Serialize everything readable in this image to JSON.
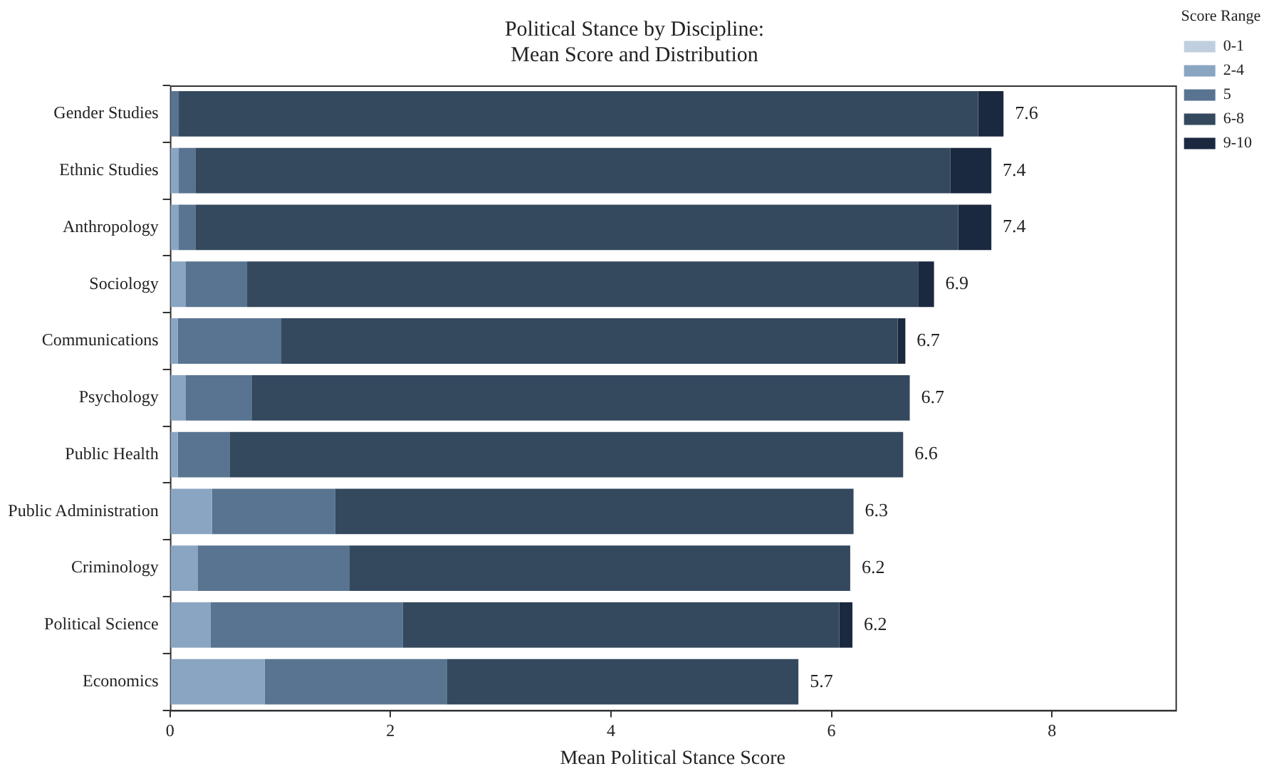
{
  "chart_data": {
    "type": "bar",
    "orientation": "horizontal",
    "stacked": true,
    "title": "Political Stance by Discipline:\nMean Score and Distribution",
    "xlabel": "Mean Political Stance Score",
    "legend_title": "Score Range",
    "legend": "top right",
    "grid": false,
    "categories": [
      "Gender Studies",
      "Ethnic Studies",
      "Anthropology",
      "Sociology",
      "Communications",
      "Psychology",
      "Public Health",
      "Public Administration",
      "Criminology",
      "Political Science",
      "Economics"
    ],
    "xlim": [
      0,
      9.12
    ],
    "xticks": [
      0,
      2,
      4,
      6,
      8
    ],
    "series": [
      {
        "name": "0-1",
        "color": "#c0cfe0",
        "values": [
          null,
          null,
          null,
          null,
          null,
          null,
          null,
          null,
          null,
          null,
          null
        ]
      },
      {
        "name": "2-4",
        "color": "#8aa5c2",
        "values": [
          null,
          0.08,
          0.08,
          0.14,
          0.07,
          0.14,
          0.07,
          0.38,
          0.25,
          0.37,
          0.86
        ]
      },
      {
        "name": "5",
        "color": "#587491",
        "values": [
          0.08,
          0.15,
          0.15,
          0.56,
          0.94,
          0.6,
          0.47,
          1.12,
          1.38,
          1.74,
          1.65
        ]
      },
      {
        "name": "6-8",
        "color": "#34495e",
        "values": [
          7.25,
          6.85,
          6.92,
          6.09,
          5.59,
          5.97,
          6.11,
          4.7,
          4.54,
          3.96,
          3.19
        ]
      },
      {
        "name": "9-10",
        "color": "#1b2940",
        "values": [
          0.23,
          0.37,
          0.3,
          0.14,
          0.07,
          null,
          null,
          null,
          null,
          0.12,
          null
        ]
      }
    ],
    "totals": [
      "7.6",
      "7.4",
      "7.4",
      "6.9",
      "6.7",
      "6.7",
      "6.6",
      "6.3",
      "6.2",
      "6.2",
      "5.7"
    ]
  }
}
